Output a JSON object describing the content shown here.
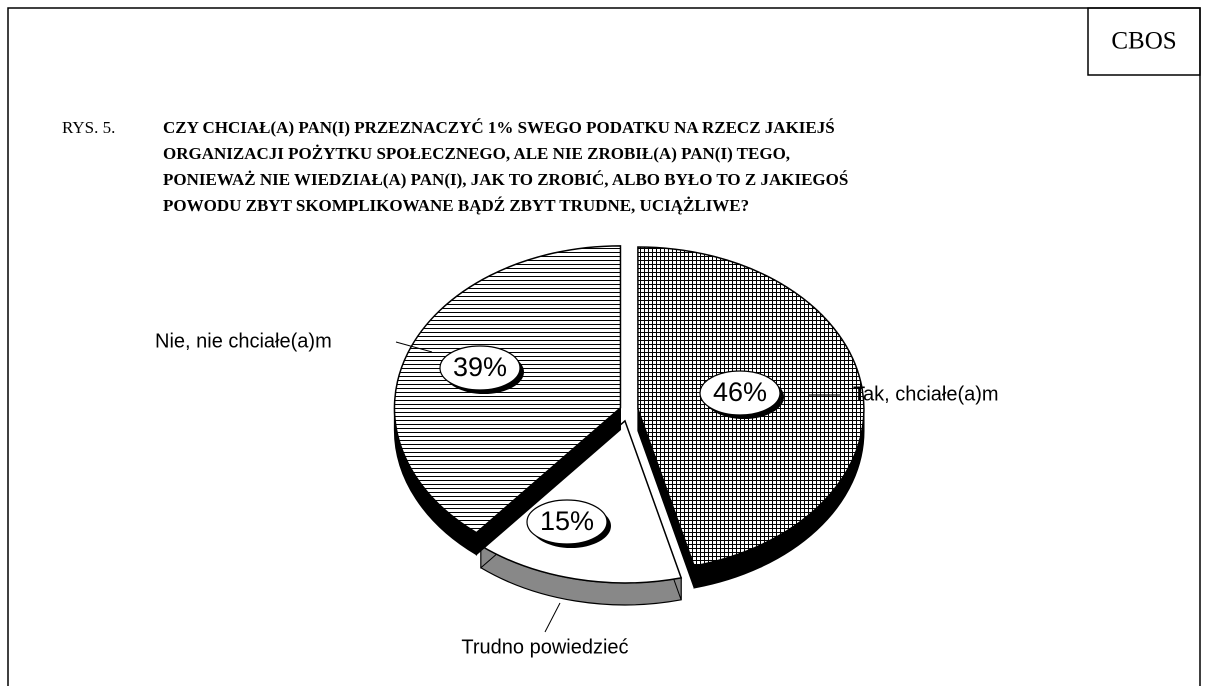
{
  "source": "CBOS",
  "figure_label": "RYS. 5.",
  "chart_data": {
    "type": "pie",
    "title_lines": [
      "CZY CHCIAŁ(A) PAN(I) PRZEZNACZYĆ 1% SWEGO PODATKU NA RZECZ JAKIEJŚ",
      "ORGANIZACJI POŻYTKU SPOŁECZNEGO, ALE NIE ZROBIŁ(A) PAN(I) TEGO,",
      "PONIEWAŻ NIE WIEDZIAŁ(A) PAN(I), JAK TO ZROBIĆ, ALBO BYŁO TO Z JAKIEGOŚ",
      "POWODU ZBYT SKOMPLIKOWANE BĄDŹ ZBYT TRUDNE, UCIĄŻLIWE?"
    ],
    "categories": [
      "Tak, chciałe(a)m",
      "Trudno powiedzieć",
      "Nie, nie chciałe(a)m"
    ],
    "values": [
      46,
      15,
      39
    ],
    "value_labels": [
      "46%",
      "15%",
      "39%"
    ],
    "fills": [
      "grid",
      "plain",
      "lines"
    ]
  }
}
